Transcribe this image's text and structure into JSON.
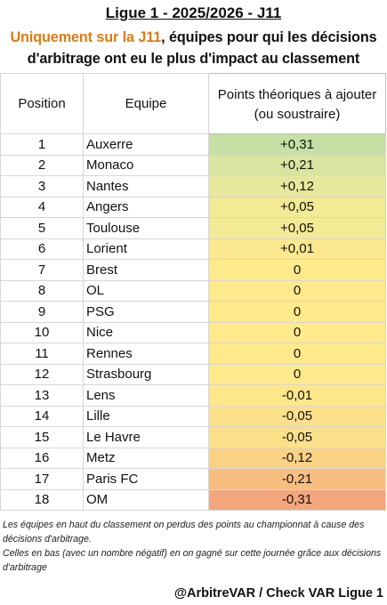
{
  "header": {
    "title": "Ligue 1 - 2025/2026 - J11",
    "subtitle_accent": "Uniquement sur la J11",
    "subtitle_rest_line1": ", équipes pour qui les décisions",
    "subtitle_line2": "d'arbitrage ont eu le plus d'impact au classement"
  },
  "table": {
    "columns": {
      "position": "Position",
      "team": "Equipe",
      "points_line1": "Points théoriques à ajouter",
      "points_line2": "(ou soustraire)"
    },
    "rows": [
      {
        "position": "1",
        "team": "Auxerre",
        "points": "+0,31",
        "color": "#c6dfa4"
      },
      {
        "position": "2",
        "team": "Monaco",
        "points": "+0,21",
        "color": "#d8e4a0"
      },
      {
        "position": "3",
        "team": "Nantes",
        "points": "+0,12",
        "color": "#e7e89b"
      },
      {
        "position": "4",
        "team": "Angers",
        "points": "+0,05",
        "color": "#f3ea95"
      },
      {
        "position": "5",
        "team": "Toulouse",
        "points": "+0,05",
        "color": "#f3ea95"
      },
      {
        "position": "6",
        "team": "Lorient",
        "points": "+0,01",
        "color": "#fbe88f"
      },
      {
        "position": "7",
        "team": "Brest",
        "points": "0",
        "color": "#fee98b"
      },
      {
        "position": "8",
        "team": "OL",
        "points": "0",
        "color": "#fee98b"
      },
      {
        "position": "9",
        "team": "PSG",
        "points": "0",
        "color": "#fee98b"
      },
      {
        "position": "10",
        "team": "Nice",
        "points": "0",
        "color": "#fee98b"
      },
      {
        "position": "11",
        "team": "Rennes",
        "points": "0",
        "color": "#fee98b"
      },
      {
        "position": "12",
        "team": "Strasbourg",
        "points": "0",
        "color": "#fee98b"
      },
      {
        "position": "13",
        "team": "Lens",
        "points": "-0,01",
        "color": "#fee68a"
      },
      {
        "position": "14",
        "team": "Lille",
        "points": "-0,05",
        "color": "#fde08a"
      },
      {
        "position": "15",
        "team": "Le Havre",
        "points": "-0,05",
        "color": "#fde08a"
      },
      {
        "position": "16",
        "team": "Metz",
        "points": "-0,12",
        "color": "#fbd186"
      },
      {
        "position": "17",
        "team": "Paris FC",
        "points": "-0,21",
        "color": "#f8be80"
      },
      {
        "position": "18",
        "team": "OM",
        "points": "-0,31",
        "color": "#f3a67c"
      }
    ]
  },
  "footnote": {
    "line1": "Les équipes en haut du classement on perdus des points au championnat à cause des décisions d'arbitrage.",
    "line2": "Celles en bas (avec un nombre négatif) en on gagné sur cette journée grâce aux décisions d'arbitrage"
  },
  "credit": "@ArbitreVAR / Check VAR Ligue 1"
}
